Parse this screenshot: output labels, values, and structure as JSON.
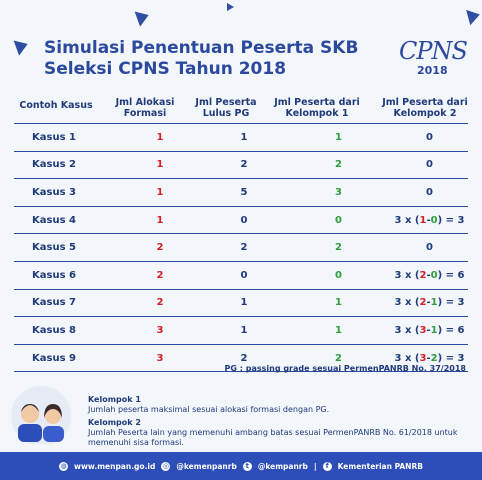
{
  "title": {
    "line1": "Simulasi Penentuan Peserta SKB",
    "line2": "Seleksi CPNS Tahun 2018"
  },
  "logo": {
    "text": "CPNS",
    "year": "2018"
  },
  "headers": {
    "col1": "Contoh Kasus",
    "col2a": "Jml Alokasi",
    "col2b": "Formasi",
    "col3a": "Jml Peserta",
    "col3b": "Lulus PG",
    "col4a": "Jml Peserta dari",
    "col4b": "Kelompok 1",
    "col5a": "Jml Peserta dari",
    "col5b": "Kelompok 2"
  },
  "rows": [
    {
      "kasus": "Kasus 1",
      "alokasi": "1",
      "lulus": "1",
      "k1": "1",
      "k2_pre": "0",
      "k2_a": "",
      "k2_b": "",
      "k2_post": ""
    },
    {
      "kasus": "Kasus 2",
      "alokasi": "1",
      "lulus": "2",
      "k1": "2",
      "k2_pre": "0",
      "k2_a": "",
      "k2_b": "",
      "k2_post": ""
    },
    {
      "kasus": "Kasus 3",
      "alokasi": "1",
      "lulus": "5",
      "k1": "3",
      "k2_pre": "0",
      "k2_a": "",
      "k2_b": "",
      "k2_post": ""
    },
    {
      "kasus": "Kasus 4",
      "alokasi": "1",
      "lulus": "0",
      "k1": "0",
      "k2_pre": "3 x (",
      "k2_a": "1",
      "k2_b": "0",
      "k2_post": ") = 3"
    },
    {
      "kasus": "Kasus 5",
      "alokasi": "2",
      "lulus": "2",
      "k1": "2",
      "k2_pre": "0",
      "k2_a": "",
      "k2_b": "",
      "k2_post": ""
    },
    {
      "kasus": "Kasus 6",
      "alokasi": "2",
      "lulus": "0",
      "k1": "0",
      "k2_pre": "3 x (",
      "k2_a": "2",
      "k2_b": "0",
      "k2_post": ") = 6"
    },
    {
      "kasus": "Kasus 7",
      "alokasi": "2",
      "lulus": "1",
      "k1": "1",
      "k2_pre": "3 x (",
      "k2_a": "2",
      "k2_b": "1",
      "k2_post": ") = 3"
    },
    {
      "kasus": "Kasus 8",
      "alokasi": "3",
      "lulus": "1",
      "k1": "1",
      "k2_pre": "3 x (",
      "k2_a": "3",
      "k2_b": "1",
      "k2_post": ") = 6"
    },
    {
      "kasus": "Kasus 9",
      "alokasi": "3",
      "lulus": "2",
      "k1": "2",
      "k2_pre": "3 x (",
      "k2_a": "3",
      "k2_b": "2",
      "k2_post": ") = 3"
    }
  ],
  "pg_note": "PG : passing grade sesuai PermenPANRB No. 37/2018",
  "legend": {
    "k1_title": "Kelompok 1",
    "k1_desc": "Jumlah peserta maksimal sesuai alokasi formasi dengan PG.",
    "k2_title": "Kelompok 2",
    "k2_desc": "Jumlah Peserta lain yang memenuhi ambang batas sesuai PermenPANRB No. 61/2018 untuk memenuhi sisa formasi."
  },
  "footer": {
    "web": "www.menpan.go.id",
    "ig": "@kemenpanrb",
    "tw": "@kempanrb",
    "fb": "Kementerian PANRB"
  },
  "colors": {
    "blue": "#2b4a9e",
    "red": "#d32027",
    "green": "#2e9e3e",
    "footer": "#2d4db8"
  }
}
